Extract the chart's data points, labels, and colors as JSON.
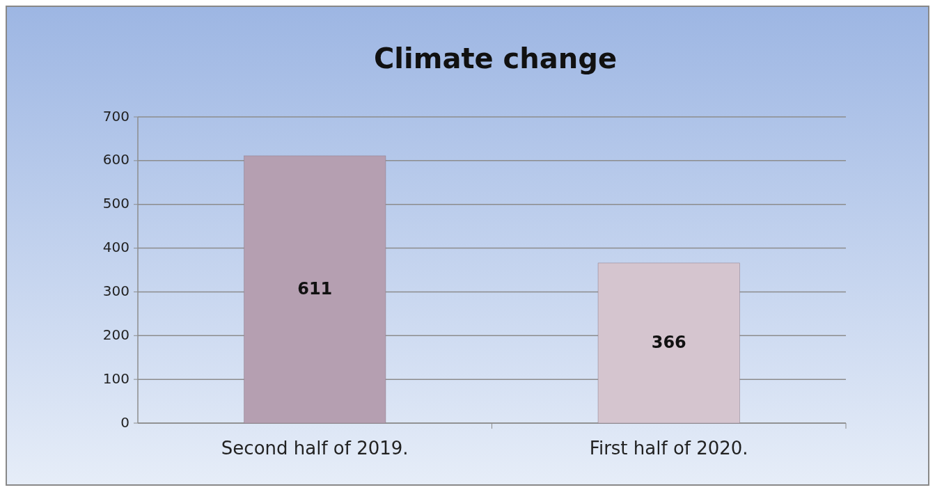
{
  "chart_data": {
    "type": "bar",
    "title": "Climate change",
    "categories": [
      "Second half of 2019.",
      "First half of 2020."
    ],
    "values": [
      611,
      366
    ],
    "colors": [
      "#b59fb1",
      "#d5c5cf"
    ],
    "ylim": [
      0,
      700
    ],
    "yticks": [
      0,
      100,
      200,
      300,
      400,
      500,
      600,
      700
    ],
    "grid": "y",
    "data_labels": true
  }
}
